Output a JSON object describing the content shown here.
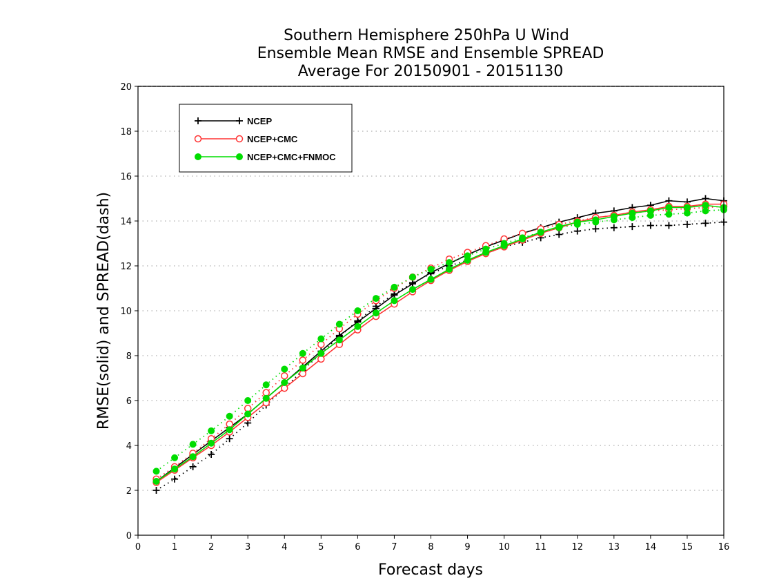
{
  "chart_data": {
    "type": "line",
    "title": [
      "Southern Hemisphere 250hPa U Wind",
      "Ensemble Mean RMSE and Ensemble SPREAD",
      "Average For 20150901 - 20151130"
    ],
    "xlabel": "Forecast days",
    "ylabel": "RMSE(solid) and SPREAD(dash)",
    "xlim": [
      0,
      16
    ],
    "ylim": [
      0,
      20
    ],
    "xticks": [
      "0",
      "1",
      "2",
      "3",
      "4",
      "5",
      "6",
      "7",
      "8",
      "9",
      "10",
      "11",
      "12",
      "13",
      "14",
      "15",
      "16"
    ],
    "yticks": [
      "0",
      "2",
      "4",
      "6",
      "8",
      "10",
      "12",
      "14",
      "16",
      "18",
      "20"
    ],
    "grid": true,
    "legend_position": "top-left",
    "x": [
      0.5,
      1,
      1.5,
      2,
      2.5,
      3,
      3.5,
      4,
      4.5,
      5,
      5.5,
      6,
      6.5,
      7,
      7.5,
      8,
      8.5,
      9,
      9.5,
      10,
      10.5,
      11,
      11.5,
      12,
      12.5,
      13,
      13.5,
      14,
      14.5,
      15,
      15.5,
      16
    ],
    "series": [
      {
        "name": "NCEP",
        "color": "#000000",
        "marker": "plus",
        "rmse": [
          2.4,
          3.0,
          3.6,
          4.2,
          4.8,
          5.4,
          6.1,
          6.8,
          7.5,
          8.2,
          8.9,
          9.5,
          10.1,
          10.7,
          11.2,
          11.7,
          12.1,
          12.5,
          12.85,
          13.15,
          13.45,
          13.7,
          13.95,
          14.15,
          14.35,
          14.45,
          14.6,
          14.7,
          14.9,
          14.85,
          15.0,
          14.9
        ],
        "spread": [
          2.0,
          2.5,
          3.05,
          3.6,
          4.3,
          5.0,
          5.8,
          6.55,
          7.35,
          8.1,
          8.85,
          9.55,
          10.2,
          10.75,
          11.25,
          11.65,
          12.0,
          12.25,
          12.55,
          12.85,
          13.05,
          13.25,
          13.4,
          13.55,
          13.65,
          13.7,
          13.75,
          13.8,
          13.8,
          13.85,
          13.9,
          13.95
        ]
      },
      {
        "name": "NCEP+CMC",
        "color": "#ff3333",
        "marker": "open-circle",
        "rmse": [
          2.35,
          2.9,
          3.45,
          4.0,
          4.6,
          5.25,
          5.9,
          6.55,
          7.2,
          7.85,
          8.5,
          9.15,
          9.75,
          10.3,
          10.85,
          11.35,
          11.8,
          12.2,
          12.55,
          12.85,
          13.15,
          13.45,
          13.7,
          13.95,
          14.15,
          14.25,
          14.4,
          14.5,
          14.65,
          14.65,
          14.75,
          14.75
        ],
        "spread": [
          2.5,
          3.05,
          3.65,
          4.3,
          4.95,
          5.65,
          6.35,
          7.1,
          7.8,
          8.5,
          9.2,
          9.85,
          10.45,
          11.0,
          11.5,
          11.9,
          12.3,
          12.6,
          12.9,
          13.2,
          13.45,
          13.65,
          13.85,
          14.0,
          14.15,
          14.25,
          14.35,
          14.45,
          14.5,
          14.55,
          14.6,
          14.65
        ]
      },
      {
        "name": "NCEP+CMC+FNMOC",
        "color": "#00dd00",
        "marker": "filled-circle",
        "rmse": [
          2.4,
          2.95,
          3.5,
          4.1,
          4.7,
          5.4,
          6.1,
          6.8,
          7.45,
          8.1,
          8.7,
          9.3,
          9.9,
          10.45,
          10.95,
          11.4,
          11.85,
          12.25,
          12.6,
          12.9,
          13.2,
          13.5,
          13.75,
          13.95,
          14.05,
          14.2,
          14.35,
          14.45,
          14.6,
          14.6,
          14.7,
          14.6
        ],
        "spread": [
          2.85,
          3.45,
          4.05,
          4.65,
          5.3,
          6.0,
          6.7,
          7.4,
          8.1,
          8.75,
          9.4,
          10.0,
          10.55,
          11.05,
          11.5,
          11.85,
          12.15,
          12.45,
          12.75,
          13.0,
          13.25,
          13.5,
          13.7,
          13.85,
          13.95,
          14.05,
          14.15,
          14.25,
          14.3,
          14.35,
          14.45,
          14.5
        ]
      }
    ]
  }
}
